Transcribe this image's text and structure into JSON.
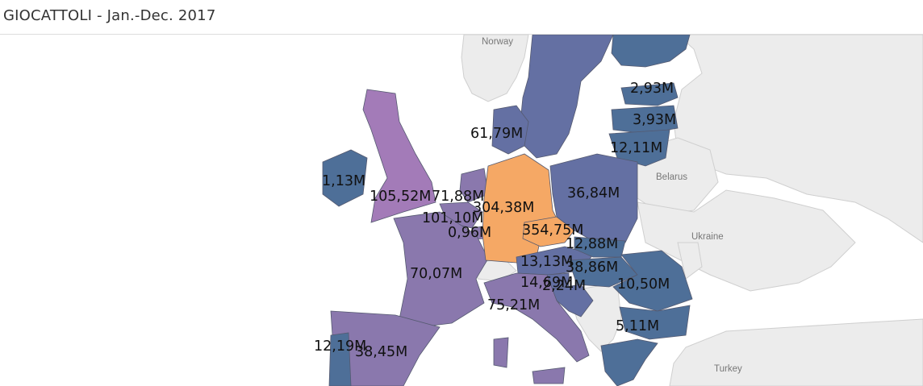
{
  "title": "GIOCATTOLI - Jan.-Dec. 2017",
  "colors": {
    "highest": "#f5a865",
    "purple_high": "#a37bb8",
    "purple_mid": "#8a78ad",
    "blue_mid": "#6470a3",
    "blue_low": "#4e6f98",
    "background_land": "#ececec",
    "sea": "#ffffff"
  },
  "geo_labels": {
    "norway": "Norway",
    "belarus": "Belarus",
    "ukraine": "Ukraine",
    "turkey": "Turkey"
  },
  "values": {
    "united_kingdom": "105,52M",
    "ireland": "1,13M",
    "france": "70,07M",
    "spain": "38,45M",
    "portugal": "12,19M",
    "italy": "75,21M",
    "germany": "304,38M",
    "austria": "13,13M",
    "czechia": "354,75M",
    "netherlands": "71,88M",
    "belgium": "101,10M",
    "luxembourg": "0,96M",
    "denmark": "61,79M",
    "poland": "36,84M",
    "slovakia": "12,88M",
    "hungary": "38,86M",
    "slovenia": "14,69M",
    "croatia": "2,24M",
    "romania": "10,50M",
    "bulgaria": "5,11M",
    "estonia": "2,93M",
    "latvia": "3,93M",
    "lithuania": "12,11M"
  }
}
